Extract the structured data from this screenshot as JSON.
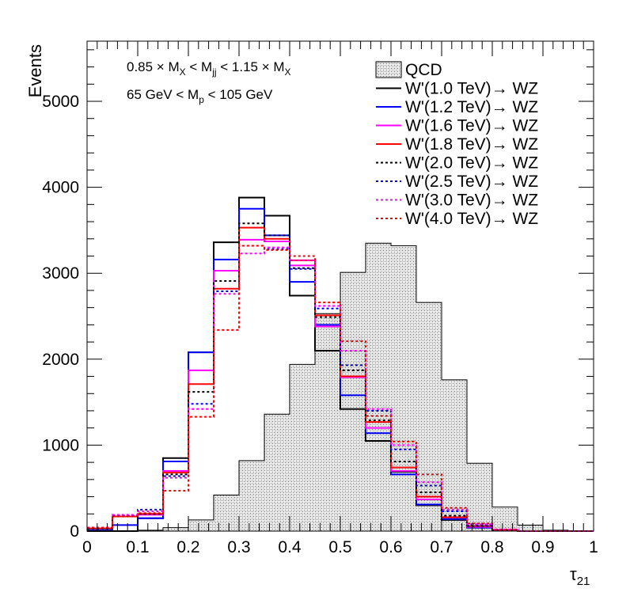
{
  "chart_data": {
    "type": "histogram",
    "xlabel_base": "τ",
    "xlabel_sub": "21",
    "ylabel": "Events",
    "xlim": [
      0,
      1
    ],
    "ylim": [
      0,
      5700
    ],
    "bin_edges": [
      0,
      0.05,
      0.1,
      0.15,
      0.2,
      0.25,
      0.3,
      0.35,
      0.4,
      0.45,
      0.5,
      0.55,
      0.6,
      0.65,
      0.7,
      0.75,
      0.8,
      0.85,
      0.9,
      0.95,
      1.0
    ],
    "x_ticks": [
      0,
      0.1,
      0.2,
      0.3,
      0.4,
      0.5,
      0.6,
      0.7,
      0.8,
      0.9,
      1
    ],
    "x_tick_labels": [
      "0",
      "0.1",
      "0.2",
      "0.3",
      "0.4",
      "0.5",
      "0.6",
      "0.7",
      "0.8",
      "0.9",
      "1"
    ],
    "y_ticks": [
      0,
      1000,
      2000,
      3000,
      4000,
      5000
    ],
    "y_tick_labels": [
      "0",
      "1000",
      "2000",
      "3000",
      "4000",
      "5000"
    ],
    "annotations": [
      {
        "parts": [
          [
            "0.85 × M",
            ""
          ],
          [
            "X",
            "sub"
          ],
          [
            " < M",
            ""
          ],
          [
            "jj",
            "sub"
          ],
          [
            " < 1.15 × M",
            ""
          ],
          [
            "X",
            "sub"
          ]
        ]
      },
      {
        "parts": [
          [
            "65 GeV < M",
            ""
          ],
          [
            "p",
            "sub"
          ],
          [
            " < 105 GeV",
            ""
          ]
        ]
      }
    ],
    "qcd": {
      "name": "QCD",
      "values": [
        0,
        0,
        10,
        40,
        130,
        420,
        820,
        1360,
        1940,
        2530,
        3010,
        3350,
        3320,
        2660,
        1760,
        790,
        280,
        70,
        10,
        0
      ]
    },
    "series": [
      {
        "name": "W'(1.0 TeV)→ WZ",
        "color": "#000000",
        "dash": false,
        "values": [
          0,
          0,
          150,
          850,
          2080,
          3360,
          3880,
          3670,
          2740,
          2100,
          1420,
          1050,
          690,
          300,
          130,
          40,
          10,
          0,
          0,
          0
        ]
      },
      {
        "name": "W'(1.2 TeV)→ WZ",
        "color": "#0000ff",
        "dash": false,
        "values": [
          20,
          70,
          150,
          810,
          2080,
          3160,
          3750,
          3440,
          2900,
          2400,
          1580,
          1140,
          660,
          310,
          140,
          40,
          10,
          0,
          0,
          0
        ]
      },
      {
        "name": "W'(1.6 TeV)→ WZ",
        "color": "#ff00ff",
        "dash": false,
        "values": [
          30,
          170,
          190,
          700,
          1870,
          3030,
          3390,
          3370,
          3090,
          2380,
          1790,
          1200,
          700,
          370,
          160,
          50,
          10,
          0,
          0,
          0
        ]
      },
      {
        "name": "W'(1.8 TeV)→ WZ",
        "color": "#ff0000",
        "dash": false,
        "values": [
          30,
          170,
          200,
          680,
          1710,
          2820,
          3530,
          3400,
          3150,
          2510,
          1800,
          1270,
          740,
          400,
          160,
          60,
          10,
          0,
          0,
          0
        ]
      },
      {
        "name": "W'(2.0 TeV)→ WZ",
        "color": "#000000",
        "dash": true,
        "values": [
          30,
          170,
          200,
          660,
          1620,
          2910,
          3580,
          3440,
          3060,
          2490,
          1870,
          1290,
          810,
          450,
          180,
          60,
          10,
          0,
          0,
          0
        ]
      },
      {
        "name": "W'(2.5 TeV)→ WZ",
        "color": "#0000ff",
        "dash": true,
        "values": [
          40,
          180,
          250,
          640,
          1480,
          2790,
          3320,
          3280,
          3050,
          2590,
          1930,
          1400,
          950,
          530,
          230,
          70,
          20,
          0,
          0,
          0
        ]
      },
      {
        "name": "W'(3.0 TeV)→ WZ",
        "color": "#ff00ff",
        "dash": true,
        "values": [
          40,
          190,
          230,
          620,
          1420,
          2760,
          3230,
          3300,
          3150,
          2620,
          2100,
          1420,
          1000,
          570,
          250,
          80,
          20,
          0,
          0,
          0
        ]
      },
      {
        "name": "W'(4.0 TeV)→ WZ",
        "color": "#ff0000",
        "dash": true,
        "values": [
          40,
          170,
          210,
          470,
          1330,
          2340,
          3320,
          3270,
          3200,
          2660,
          2210,
          1340,
          1040,
          660,
          270,
          90,
          20,
          0,
          0,
          0
        ]
      }
    ],
    "grid": false,
    "legend_position": "top-right"
  }
}
